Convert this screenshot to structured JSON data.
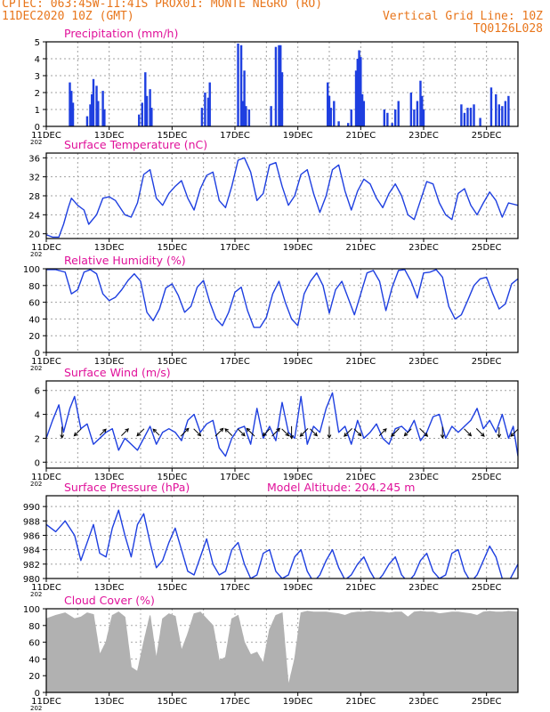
{
  "header": {
    "line1_left": "CPTEC:  063:45W-11:41S  PROX01: MONTE NEGRO (RO)",
    "line2_left": "11DEC2020 10Z (GMT)",
    "line2_right": "Vertical Grid Line: 10Z",
    "line3_right": "TQ0126L028"
  },
  "colors": {
    "header_text": "#e8761c",
    "panel_title": "#e0119a",
    "series": "#1e3fe0",
    "bars": "#1e3fe0",
    "cloud": "#aaaaaa",
    "arrows": "#000000",
    "grid": "#a0a0a0"
  },
  "x_axis": {
    "start_day": 11,
    "end_day": 26,
    "tick_labels": [
      "11DEC",
      "13DEC",
      "15DEC",
      "17DEC",
      "19DEC",
      "21DEC",
      "23DEC",
      "25DEC"
    ],
    "tick_days": [
      11,
      13,
      15,
      17,
      19,
      21,
      23,
      25
    ],
    "overlap_glyph": "202"
  },
  "chart_data": [
    {
      "type": "bar",
      "title": "Precipitation (mm/h)",
      "ylim": [
        0,
        5
      ],
      "yticks": [
        0,
        1,
        2,
        3,
        4,
        5
      ],
      "x": [
        11.75,
        11.8,
        11.85,
        12.3,
        12.4,
        12.45,
        12.5,
        12.6,
        12.65,
        12.8,
        12.85,
        13.95,
        14.05,
        14.15,
        14.2,
        14.3,
        14.35,
        15.95,
        16.05,
        16.15,
        16.2,
        17.1,
        17.2,
        17.25,
        17.3,
        17.35,
        17.45,
        18.15,
        18.3,
        18.4,
        18.45,
        18.5,
        19.95,
        20.0,
        20.05,
        20.15,
        20.3,
        20.6,
        20.7,
        20.85,
        20.9,
        20.95,
        21.0,
        21.05,
        21.1,
        21.75,
        21.85,
        22.0,
        22.1,
        22.2,
        22.6,
        22.7,
        22.8,
        22.9,
        22.95,
        23.0,
        24.2,
        24.3,
        24.4,
        24.5,
        24.6,
        24.8,
        25.15,
        25.3,
        25.4,
        25.5,
        25.6,
        25.7
      ],
      "values": [
        2.6,
        2.1,
        1.4,
        0.6,
        1.3,
        1.9,
        2.8,
        2.4,
        1.5,
        2.1,
        1.0,
        0.7,
        1.4,
        3.2,
        1.8,
        2.2,
        1.1,
        1.1,
        2.0,
        1.7,
        2.6,
        4.9,
        4.8,
        1.5,
        3.3,
        1.2,
        1.0,
        1.2,
        4.7,
        4.8,
        4.8,
        3.2,
        2.6,
        1.8,
        1.1,
        1.5,
        0.3,
        0.2,
        1.0,
        3.3,
        4.0,
        4.5,
        4.1,
        1.9,
        1.5,
        1.0,
        0.8,
        0.2,
        1.0,
        1.5,
        2.0,
        1.0,
        1.5,
        2.7,
        1.8,
        1.0,
        1.3,
        0.8,
        1.1,
        1.1,
        1.3,
        0.5,
        2.3,
        1.9,
        1.3,
        1.2,
        1.5,
        1.8
      ]
    },
    {
      "type": "line",
      "title": "Surface Temperature (nC)",
      "ylim": [
        19,
        37
      ],
      "yticks": [
        20,
        24,
        28,
        32,
        36
      ],
      "x": [
        11.0,
        11.2,
        11.4,
        11.55,
        11.7,
        11.8,
        12.0,
        12.2,
        12.35,
        12.6,
        12.8,
        13.0,
        13.2,
        13.5,
        13.7,
        13.9,
        14.1,
        14.3,
        14.5,
        14.7,
        14.9,
        15.1,
        15.3,
        15.5,
        15.7,
        15.9,
        16.1,
        16.3,
        16.5,
        16.7,
        16.9,
        17.1,
        17.3,
        17.5,
        17.7,
        17.9,
        18.1,
        18.3,
        18.5,
        18.7,
        18.9,
        19.1,
        19.3,
        19.5,
        19.7,
        19.9,
        20.1,
        20.3,
        20.5,
        20.7,
        20.9,
        21.1,
        21.3,
        21.5,
        21.7,
        21.9,
        22.1,
        22.3,
        22.5,
        22.7,
        22.9,
        23.1,
        23.3,
        23.5,
        23.7,
        23.9,
        24.1,
        24.3,
        24.5,
        24.7,
        24.9,
        25.1,
        25.3,
        25.5,
        25.7,
        26.0
      ],
      "values": [
        19.8,
        19.3,
        19.3,
        22.0,
        25.5,
        27.5,
        26.0,
        25.0,
        22.0,
        24.0,
        27.5,
        27.8,
        27.0,
        24.0,
        23.5,
        26.5,
        32.5,
        33.5,
        27.5,
        26.0,
        28.5,
        30.0,
        31.2,
        27.5,
        25.0,
        29.5,
        32.3,
        33.0,
        27.0,
        25.5,
        30.0,
        35.5,
        36.0,
        33.0,
        27.0,
        28.5,
        34.5,
        35.0,
        30.0,
        26.0,
        28.0,
        32.5,
        33.5,
        28.5,
        24.5,
        28.0,
        33.5,
        34.5,
        29.0,
        25.0,
        29.0,
        31.5,
        30.5,
        27.5,
        25.5,
        28.5,
        30.5,
        28.0,
        24.0,
        23.0,
        27.0,
        31.0,
        30.5,
        26.5,
        24.0,
        23.0,
        28.5,
        29.5,
        26.0,
        24.0,
        26.5,
        28.8,
        27.0,
        23.5,
        26.5,
        26.0
      ]
    },
    {
      "type": "line",
      "title": "Relative Humidity (%)",
      "ylim": [
        0,
        100
      ],
      "yticks": [
        0,
        20,
        40,
        60,
        80,
        100
      ],
      "x": [
        11.0,
        11.3,
        11.6,
        11.8,
        12.0,
        12.2,
        12.4,
        12.6,
        12.8,
        13.0,
        13.2,
        13.4,
        13.6,
        13.8,
        14.0,
        14.2,
        14.4,
        14.6,
        14.8,
        15.0,
        15.2,
        15.4,
        15.6,
        15.8,
        16.0,
        16.2,
        16.4,
        16.6,
        16.8,
        17.0,
        17.2,
        17.4,
        17.6,
        17.8,
        18.0,
        18.2,
        18.4,
        18.6,
        18.8,
        19.0,
        19.2,
        19.4,
        19.6,
        19.8,
        20.0,
        20.2,
        20.4,
        20.6,
        20.8,
        21.0,
        21.2,
        21.4,
        21.6,
        21.8,
        22.0,
        22.2,
        22.4,
        22.6,
        22.8,
        23.0,
        23.2,
        23.4,
        23.6,
        23.8,
        24.0,
        24.2,
        24.4,
        24.6,
        24.8,
        25.0,
        25.2,
        25.4,
        25.6,
        25.8,
        26.0
      ],
      "values": [
        99,
        99,
        96,
        70,
        75,
        96,
        99,
        94,
        70,
        62,
        66,
        75,
        86,
        94,
        85,
        48,
        38,
        52,
        77,
        82,
        68,
        48,
        55,
        78,
        86,
        60,
        40,
        32,
        48,
        72,
        78,
        50,
        30,
        30,
        42,
        70,
        85,
        60,
        40,
        32,
        70,
        85,
        95,
        80,
        47,
        75,
        85,
        65,
        45,
        70,
        95,
        98,
        85,
        50,
        78,
        98,
        99,
        85,
        65,
        95,
        96,
        99,
        90,
        55,
        40,
        45,
        62,
        80,
        88,
        90,
        70,
        52,
        58,
        82,
        88
      ]
    },
    {
      "type": "line",
      "title": "Surface Wind (m/s)",
      "ylim": [
        -0.5,
        6.8
      ],
      "yticks": [
        0,
        2,
        4,
        6
      ],
      "x": [
        11.0,
        11.2,
        11.4,
        11.55,
        11.75,
        11.9,
        12.1,
        12.3,
        12.5,
        12.7,
        12.9,
        13.1,
        13.3,
        13.5,
        13.7,
        13.9,
        14.1,
        14.3,
        14.5,
        14.7,
        14.9,
        15.1,
        15.3,
        15.5,
        15.7,
        15.9,
        16.1,
        16.3,
        16.5,
        16.7,
        16.9,
        17.1,
        17.3,
        17.5,
        17.7,
        17.9,
        18.1,
        18.3,
        18.5,
        18.7,
        18.9,
        19.1,
        19.3,
        19.5,
        19.7,
        19.9,
        20.1,
        20.3,
        20.5,
        20.7,
        20.9,
        21.1,
        21.3,
        21.5,
        21.7,
        21.9,
        22.1,
        22.3,
        22.5,
        22.7,
        22.9,
        23.1,
        23.3,
        23.5,
        23.7,
        23.9,
        24.1,
        24.3,
        24.5,
        24.7,
        24.9,
        25.1,
        25.3,
        25.5,
        25.7,
        25.85,
        26.0
      ],
      "values": [
        2.0,
        3.5,
        4.8,
        2.5,
        4.5,
        5.5,
        2.8,
        3.2,
        1.5,
        2.0,
        2.5,
        2.8,
        1.0,
        2.0,
        1.5,
        1.0,
        2.0,
        3.0,
        1.5,
        2.5,
        2.8,
        2.5,
        1.8,
        3.5,
        4.0,
        2.5,
        3.2,
        3.5,
        1.2,
        0.5,
        2.0,
        2.8,
        3.0,
        1.5,
        4.5,
        2.0,
        3.0,
        1.8,
        5.0,
        2.5,
        2.0,
        5.5,
        1.5,
        3.0,
        2.5,
        4.5,
        5.8,
        2.5,
        3.0,
        1.5,
        3.5,
        2.0,
        2.5,
        3.2,
        2.0,
        1.5,
        2.8,
        3.0,
        2.5,
        3.5,
        1.8,
        2.5,
        3.8,
        4.0,
        2.0,
        3.0,
        2.5,
        3.0,
        3.5,
        4.5,
        2.8,
        3.5,
        2.5,
        4.0,
        2.0,
        3.0,
        0.5
      ],
      "vectors": [
        {
          "x": 11.5,
          "speed": 2.5,
          "dir": "S"
        },
        {
          "x": 12.0,
          "speed": 2.0,
          "dir": "SW"
        },
        {
          "x": 12.8,
          "speed": 1.5,
          "dir": "NE"
        },
        {
          "x": 13.5,
          "speed": 2.0,
          "dir": "NE"
        },
        {
          "x": 14.0,
          "speed": 2.0,
          "dir": "SW"
        },
        {
          "x": 14.5,
          "speed": 1.5,
          "dir": "NW"
        },
        {
          "x": 15.4,
          "speed": 2.5,
          "dir": "NE"
        },
        {
          "x": 15.8,
          "speed": 2.0,
          "dir": "SE"
        },
        {
          "x": 16.5,
          "speed": 2.5,
          "dir": "NE"
        },
        {
          "x": 16.8,
          "speed": 2.0,
          "dir": "NW"
        },
        {
          "x": 17.2,
          "speed": 2.0,
          "dir": "SE"
        },
        {
          "x": 17.5,
          "speed": 2.5,
          "dir": "NW"
        },
        {
          "x": 18.0,
          "speed": 2.0,
          "dir": "SW"
        },
        {
          "x": 18.3,
          "speed": 2.5,
          "dir": "NE"
        },
        {
          "x": 18.6,
          "speed": 2.0,
          "dir": "SE"
        },
        {
          "x": 18.8,
          "speed": 3.0,
          "dir": "S"
        },
        {
          "x": 19.2,
          "speed": 2.5,
          "dir": "SW"
        },
        {
          "x": 19.5,
          "speed": 2.0,
          "dir": "SE"
        },
        {
          "x": 20.0,
          "speed": 2.5,
          "dir": "S"
        },
        {
          "x": 20.6,
          "speed": 2.5,
          "dir": "SW"
        },
        {
          "x": 20.9,
          "speed": 2.0,
          "dir": "SE"
        },
        {
          "x": 21.7,
          "speed": 2.0,
          "dir": "NE"
        },
        {
          "x": 22.1,
          "speed": 2.5,
          "dir": "SW"
        },
        {
          "x": 22.5,
          "speed": 2.0,
          "dir": "SW"
        },
        {
          "x": 23.0,
          "speed": 2.5,
          "dir": "SE"
        },
        {
          "x": 23.6,
          "speed": 2.5,
          "dir": "S"
        },
        {
          "x": 24.4,
          "speed": 2.0,
          "dir": "SE"
        },
        {
          "x": 24.8,
          "speed": 2.5,
          "dir": "SE"
        },
        {
          "x": 25.4,
          "speed": 2.0,
          "dir": "S"
        },
        {
          "x": 25.9,
          "speed": 2.5,
          "dir": "SW"
        }
      ]
    },
    {
      "type": "line",
      "title": "Surface Pressure (hPa)",
      "subtitle": "Model Altitude: 204.245 m",
      "ylim": [
        980,
        991.5
      ],
      "yticks": [
        980,
        982,
        984,
        986,
        988,
        990
      ],
      "x": [
        11.0,
        11.3,
        11.6,
        11.9,
        12.1,
        12.3,
        12.5,
        12.7,
        12.9,
        13.1,
        13.3,
        13.5,
        13.7,
        13.9,
        14.1,
        14.3,
        14.5,
        14.7,
        14.9,
        15.1,
        15.3,
        15.5,
        15.7,
        15.9,
        16.1,
        16.3,
        16.5,
        16.7,
        16.9,
        17.1,
        17.3,
        17.5,
        17.7,
        17.9,
        18.1,
        18.3,
        18.5,
        18.7,
        18.9,
        19.1,
        19.3,
        19.5,
        19.7,
        19.9,
        20.1,
        20.3,
        20.5,
        20.7,
        20.9,
        21.1,
        21.3,
        21.5,
        21.7,
        21.9,
        22.1,
        22.3,
        22.5,
        22.7,
        22.9,
        23.1,
        23.3,
        23.5,
        23.7,
        23.9,
        24.1,
        24.3,
        24.5,
        24.7,
        24.9,
        25.1,
        25.3,
        25.5,
        25.7,
        26.0
      ],
      "values": [
        987.5,
        986.5,
        988.0,
        986.0,
        982.5,
        985.0,
        987.5,
        983.5,
        983.0,
        987.0,
        989.5,
        986.0,
        983.0,
        987.5,
        989.0,
        985.0,
        981.5,
        982.5,
        985.0,
        987.0,
        984.0,
        981.0,
        980.5,
        983.0,
        985.5,
        982.0,
        980.5,
        981.0,
        984.0,
        985.0,
        982.0,
        980.0,
        980.5,
        983.5,
        984.0,
        981.0,
        980.0,
        980.5,
        983.0,
        984.0,
        981.0,
        979.5,
        980.5,
        982.5,
        984.0,
        981.5,
        979.8,
        980.5,
        982.0,
        983.0,
        981.0,
        979.5,
        980.5,
        982.0,
        983.0,
        980.5,
        979.5,
        980.5,
        982.5,
        983.5,
        981.0,
        980.0,
        980.5,
        983.5,
        984.0,
        981.0,
        979.5,
        980.5,
        982.5,
        984.5,
        983.0,
        980.0,
        979.5,
        982.0
      ]
    },
    {
      "type": "area",
      "title": "Cloud Cover (%)",
      "ylim": [
        0,
        100
      ],
      "yticks": [
        0,
        20,
        40,
        60,
        80,
        100
      ],
      "x": [
        11.0,
        11.3,
        11.6,
        11.9,
        12.1,
        12.3,
        12.5,
        12.7,
        12.9,
        13.1,
        13.3,
        13.5,
        13.7,
        13.9,
        14.1,
        14.3,
        14.5,
        14.7,
        14.9,
        15.1,
        15.3,
        15.5,
        15.7,
        15.9,
        16.1,
        16.3,
        16.5,
        16.7,
        16.9,
        17.1,
        17.3,
        17.5,
        17.7,
        17.9,
        18.1,
        18.3,
        18.5,
        18.7,
        18.9,
        19.1,
        19.3,
        19.5,
        19.7,
        19.9,
        20.1,
        20.3,
        20.5,
        20.7,
        20.9,
        21.1,
        21.3,
        21.5,
        21.7,
        21.9,
        22.1,
        22.3,
        22.5,
        22.7,
        22.9,
        23.1,
        23.3,
        23.5,
        23.7,
        23.9,
        24.1,
        24.3,
        24.5,
        24.7,
        24.9,
        25.1,
        25.3,
        25.5,
        25.7,
        26.0
      ],
      "values": [
        88,
        92,
        95,
        88,
        90,
        95,
        93,
        45,
        60,
        92,
        96,
        90,
        30,
        25,
        60,
        92,
        40,
        88,
        94,
        91,
        50,
        70,
        94,
        96,
        88,
        80,
        38,
        42,
        88,
        92,
        60,
        45,
        48,
        35,
        75,
        92,
        95,
        8,
        40,
        95,
        97,
        96,
        96,
        96,
        95,
        94,
        92,
        95,
        96,
        96,
        97,
        96,
        96,
        95,
        96,
        96,
        90,
        96,
        97,
        96,
        96,
        94,
        95,
        96,
        96,
        95,
        94,
        92,
        96,
        97,
        96,
        96,
        97,
        96
      ]
    }
  ]
}
